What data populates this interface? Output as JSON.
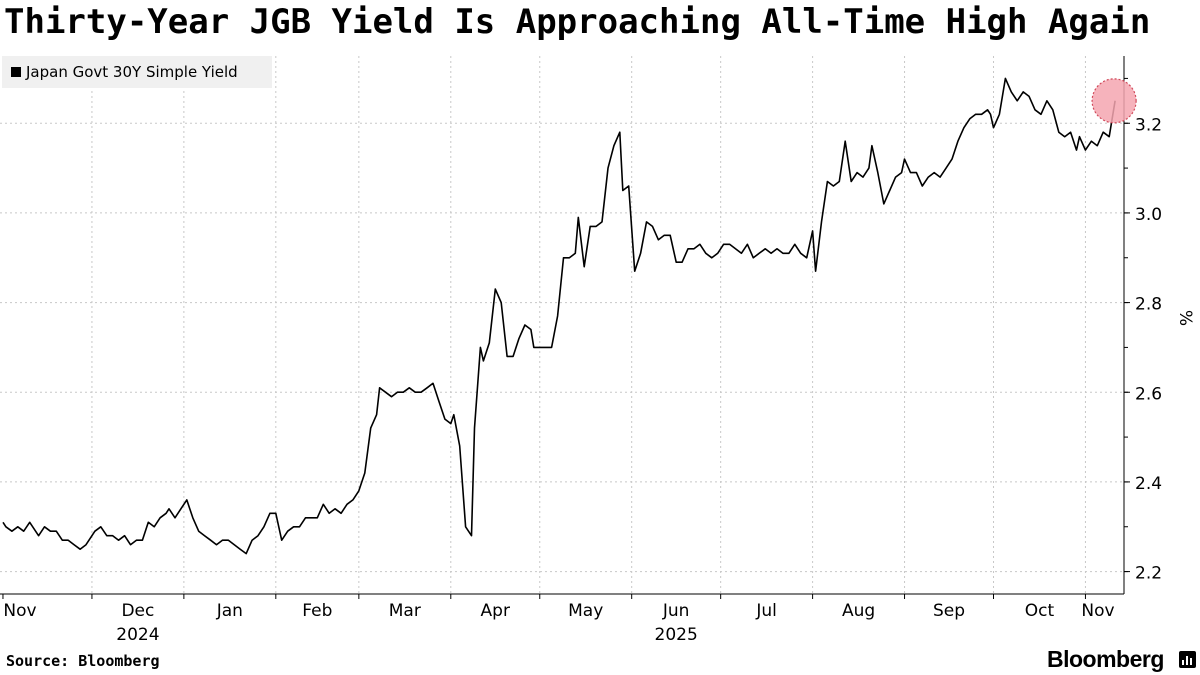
{
  "title": "Thirty-Year JGB Yield Is Approaching All-Time High Again",
  "legend_label": "Japan Govt 30Y Simple Yield",
  "footer": {
    "source": "Source: Bloomberg",
    "brand": "Bloomberg"
  },
  "icons": {
    "brand_mark": "bar-chart-icon"
  },
  "colors": {
    "line": "#000000",
    "highlight_fill": "#f4a6b0",
    "highlight_stroke": "#d0495a",
    "legend_bg": "#f0f0f0",
    "grid": "#c8c8c8"
  },
  "chart_data": {
    "type": "line",
    "title": "Thirty-Year JGB Yield Is Approaching All-Time High Again",
    "ylabel": "%",
    "ylim": [
      2.15,
      3.35
    ],
    "yticks": [
      2.2,
      2.4,
      2.6,
      2.8,
      3.0,
      3.2
    ],
    "ytick_labels": [
      "2.2",
      "2.4",
      "2.6",
      "2.8",
      "3.0",
      "3.2"
    ],
    "xlim": [
      "2024-10-31",
      "2025-11-14"
    ],
    "xticks": [
      {
        "date": "2024-11-01",
        "label": "Nov",
        "year": ""
      },
      {
        "date": "2024-12-01",
        "label": "Dec",
        "year": "2024"
      },
      {
        "date": "2025-01-01",
        "label": "Jan",
        "year": ""
      },
      {
        "date": "2025-02-01",
        "label": "Feb",
        "year": ""
      },
      {
        "date": "2025-03-01",
        "label": "Mar",
        "year": ""
      },
      {
        "date": "2025-04-01",
        "label": "Apr",
        "year": ""
      },
      {
        "date": "2025-05-01",
        "label": "May",
        "year": ""
      },
      {
        "date": "2025-06-01",
        "label": "Jun",
        "year": "2025"
      },
      {
        "date": "2025-07-01",
        "label": "Jul",
        "year": ""
      },
      {
        "date": "2025-08-01",
        "label": "Aug",
        "year": ""
      },
      {
        "date": "2025-09-01",
        "label": "Sep",
        "year": ""
      },
      {
        "date": "2025-10-01",
        "label": "Oct",
        "year": ""
      },
      {
        "date": "2025-11-01",
        "label": "Nov",
        "year": ""
      }
    ],
    "grid": true,
    "legend_position": "top-left",
    "highlight": {
      "date": "2025-11-11",
      "value": 3.25
    },
    "series": [
      {
        "name": "Japan Govt 30Y Simple Yield",
        "points": [
          [
            "2024-11-01",
            2.31
          ],
          [
            "2024-11-02",
            2.3
          ],
          [
            "2024-11-04",
            2.29
          ],
          [
            "2024-11-06",
            2.3
          ],
          [
            "2024-11-08",
            2.29
          ],
          [
            "2024-11-10",
            2.31
          ],
          [
            "2024-11-12",
            2.29
          ],
          [
            "2024-11-13",
            2.28
          ],
          [
            "2024-11-15",
            2.3
          ],
          [
            "2024-11-17",
            2.29
          ],
          [
            "2024-11-19",
            2.29
          ],
          [
            "2024-11-21",
            2.27
          ],
          [
            "2024-11-23",
            2.27
          ],
          [
            "2024-11-25",
            2.26
          ],
          [
            "2024-11-27",
            2.25
          ],
          [
            "2024-11-29",
            2.26
          ],
          [
            "2024-12-02",
            2.29
          ],
          [
            "2024-12-04",
            2.3
          ],
          [
            "2024-12-06",
            2.28
          ],
          [
            "2024-12-08",
            2.28
          ],
          [
            "2024-12-10",
            2.27
          ],
          [
            "2024-12-12",
            2.28
          ],
          [
            "2024-12-14",
            2.26
          ],
          [
            "2024-12-16",
            2.27
          ],
          [
            "2024-12-18",
            2.27
          ],
          [
            "2024-12-20",
            2.31
          ],
          [
            "2024-12-22",
            2.3
          ],
          [
            "2024-12-24",
            2.32
          ],
          [
            "2024-12-26",
            2.33
          ],
          [
            "2024-12-27",
            2.34
          ],
          [
            "2024-12-29",
            2.32
          ],
          [
            "2024-12-31",
            2.34
          ],
          [
            "2025-01-02",
            2.36
          ],
          [
            "2025-01-04",
            2.32
          ],
          [
            "2025-01-06",
            2.29
          ],
          [
            "2025-01-08",
            2.28
          ],
          [
            "2025-01-10",
            2.27
          ],
          [
            "2025-01-12",
            2.26
          ],
          [
            "2025-01-14",
            2.27
          ],
          [
            "2025-01-16",
            2.27
          ],
          [
            "2025-01-18",
            2.26
          ],
          [
            "2025-01-20",
            2.25
          ],
          [
            "2025-01-22",
            2.24
          ],
          [
            "2025-01-24",
            2.27
          ],
          [
            "2025-01-26",
            2.28
          ],
          [
            "2025-01-28",
            2.3
          ],
          [
            "2025-01-30",
            2.33
          ],
          [
            "2025-02-01",
            2.33
          ],
          [
            "2025-02-03",
            2.27
          ],
          [
            "2025-02-05",
            2.29
          ],
          [
            "2025-02-07",
            2.3
          ],
          [
            "2025-02-09",
            2.3
          ],
          [
            "2025-02-11",
            2.32
          ],
          [
            "2025-02-13",
            2.32
          ],
          [
            "2025-02-15",
            2.32
          ],
          [
            "2025-02-17",
            2.35
          ],
          [
            "2025-02-19",
            2.33
          ],
          [
            "2025-02-21",
            2.34
          ],
          [
            "2025-02-23",
            2.33
          ],
          [
            "2025-02-25",
            2.35
          ],
          [
            "2025-02-27",
            2.36
          ],
          [
            "2025-03-01",
            2.38
          ],
          [
            "2025-03-03",
            2.42
          ],
          [
            "2025-03-05",
            2.52
          ],
          [
            "2025-03-07",
            2.55
          ],
          [
            "2025-03-08",
            2.61
          ],
          [
            "2025-03-10",
            2.6
          ],
          [
            "2025-03-12",
            2.59
          ],
          [
            "2025-03-14",
            2.6
          ],
          [
            "2025-03-16",
            2.6
          ],
          [
            "2025-03-18",
            2.61
          ],
          [
            "2025-03-20",
            2.6
          ],
          [
            "2025-03-22",
            2.6
          ],
          [
            "2025-03-24",
            2.61
          ],
          [
            "2025-03-26",
            2.62
          ],
          [
            "2025-03-28",
            2.58
          ],
          [
            "2025-03-30",
            2.54
          ],
          [
            "2025-04-01",
            2.53
          ],
          [
            "2025-04-02",
            2.55
          ],
          [
            "2025-04-04",
            2.48
          ],
          [
            "2025-04-06",
            2.3
          ],
          [
            "2025-04-08",
            2.28
          ],
          [
            "2025-04-09",
            2.52
          ],
          [
            "2025-04-11",
            2.7
          ],
          [
            "2025-04-12",
            2.67
          ],
          [
            "2025-04-14",
            2.71
          ],
          [
            "2025-04-16",
            2.83
          ],
          [
            "2025-04-18",
            2.8
          ],
          [
            "2025-04-20",
            2.68
          ],
          [
            "2025-04-22",
            2.68
          ],
          [
            "2025-04-24",
            2.72
          ],
          [
            "2025-04-26",
            2.75
          ],
          [
            "2025-04-28",
            2.74
          ],
          [
            "2025-04-29",
            2.7
          ],
          [
            "2025-05-01",
            2.7
          ],
          [
            "2025-05-03",
            2.7
          ],
          [
            "2025-05-05",
            2.7
          ],
          [
            "2025-05-07",
            2.77
          ],
          [
            "2025-05-09",
            2.9
          ],
          [
            "2025-05-11",
            2.9
          ],
          [
            "2025-05-13",
            2.91
          ],
          [
            "2025-05-14",
            2.99
          ],
          [
            "2025-05-16",
            2.88
          ],
          [
            "2025-05-18",
            2.97
          ],
          [
            "2025-05-20",
            2.97
          ],
          [
            "2025-05-22",
            2.98
          ],
          [
            "2025-05-24",
            3.1
          ],
          [
            "2025-05-26",
            3.15
          ],
          [
            "2025-05-28",
            3.18
          ],
          [
            "2025-05-29",
            3.05
          ],
          [
            "2025-05-31",
            3.06
          ],
          [
            "2025-06-02",
            2.87
          ],
          [
            "2025-06-04",
            2.91
          ],
          [
            "2025-06-06",
            2.98
          ],
          [
            "2025-06-08",
            2.97
          ],
          [
            "2025-06-10",
            2.94
          ],
          [
            "2025-06-12",
            2.95
          ],
          [
            "2025-06-14",
            2.95
          ],
          [
            "2025-06-16",
            2.89
          ],
          [
            "2025-06-18",
            2.89
          ],
          [
            "2025-06-20",
            2.92
          ],
          [
            "2025-06-22",
            2.92
          ],
          [
            "2025-06-24",
            2.93
          ],
          [
            "2025-06-26",
            2.91
          ],
          [
            "2025-06-28",
            2.9
          ],
          [
            "2025-06-30",
            2.91
          ],
          [
            "2025-07-02",
            2.93
          ],
          [
            "2025-07-04",
            2.93
          ],
          [
            "2025-07-06",
            2.92
          ],
          [
            "2025-07-08",
            2.91
          ],
          [
            "2025-07-10",
            2.93
          ],
          [
            "2025-07-12",
            2.9
          ],
          [
            "2025-07-14",
            2.91
          ],
          [
            "2025-07-16",
            2.92
          ],
          [
            "2025-07-18",
            2.91
          ],
          [
            "2025-07-20",
            2.92
          ],
          [
            "2025-07-22",
            2.91
          ],
          [
            "2025-07-24",
            2.91
          ],
          [
            "2025-07-26",
            2.93
          ],
          [
            "2025-07-28",
            2.91
          ],
          [
            "2025-07-30",
            2.9
          ],
          [
            "2025-08-01",
            2.96
          ],
          [
            "2025-08-02",
            2.87
          ],
          [
            "2025-08-04",
            2.98
          ],
          [
            "2025-08-06",
            3.07
          ],
          [
            "2025-08-08",
            3.06
          ],
          [
            "2025-08-10",
            3.07
          ],
          [
            "2025-08-12",
            3.16
          ],
          [
            "2025-08-14",
            3.07
          ],
          [
            "2025-08-16",
            3.09
          ],
          [
            "2025-08-18",
            3.08
          ],
          [
            "2025-08-20",
            3.1
          ],
          [
            "2025-08-21",
            3.15
          ],
          [
            "2025-08-23",
            3.09
          ],
          [
            "2025-08-25",
            3.02
          ],
          [
            "2025-08-27",
            3.05
          ],
          [
            "2025-08-29",
            3.08
          ],
          [
            "2025-08-31",
            3.09
          ],
          [
            "2025-09-01",
            3.12
          ],
          [
            "2025-09-03",
            3.09
          ],
          [
            "2025-09-05",
            3.09
          ],
          [
            "2025-09-07",
            3.06
          ],
          [
            "2025-09-09",
            3.08
          ],
          [
            "2025-09-11",
            3.09
          ],
          [
            "2025-09-13",
            3.08
          ],
          [
            "2025-09-15",
            3.1
          ],
          [
            "2025-09-17",
            3.12
          ],
          [
            "2025-09-19",
            3.16
          ],
          [
            "2025-09-21",
            3.19
          ],
          [
            "2025-09-23",
            3.21
          ],
          [
            "2025-09-25",
            3.22
          ],
          [
            "2025-09-27",
            3.22
          ],
          [
            "2025-09-29",
            3.23
          ],
          [
            "2025-09-30",
            3.22
          ],
          [
            "2025-10-01",
            3.19
          ],
          [
            "2025-10-03",
            3.22
          ],
          [
            "2025-10-05",
            3.3
          ],
          [
            "2025-10-07",
            3.27
          ],
          [
            "2025-10-09",
            3.25
          ],
          [
            "2025-10-11",
            3.27
          ],
          [
            "2025-10-13",
            3.26
          ],
          [
            "2025-10-15",
            3.23
          ],
          [
            "2025-10-17",
            3.22
          ],
          [
            "2025-10-19",
            3.25
          ],
          [
            "2025-10-21",
            3.23
          ],
          [
            "2025-10-23",
            3.18
          ],
          [
            "2025-10-25",
            3.17
          ],
          [
            "2025-10-27",
            3.18
          ],
          [
            "2025-10-29",
            3.14
          ],
          [
            "2025-10-30",
            3.17
          ],
          [
            "2025-11-01",
            3.14
          ],
          [
            "2025-11-03",
            3.16
          ],
          [
            "2025-11-05",
            3.15
          ],
          [
            "2025-11-07",
            3.18
          ],
          [
            "2025-11-09",
            3.17
          ],
          [
            "2025-11-11",
            3.25
          ]
        ]
      }
    ]
  }
}
